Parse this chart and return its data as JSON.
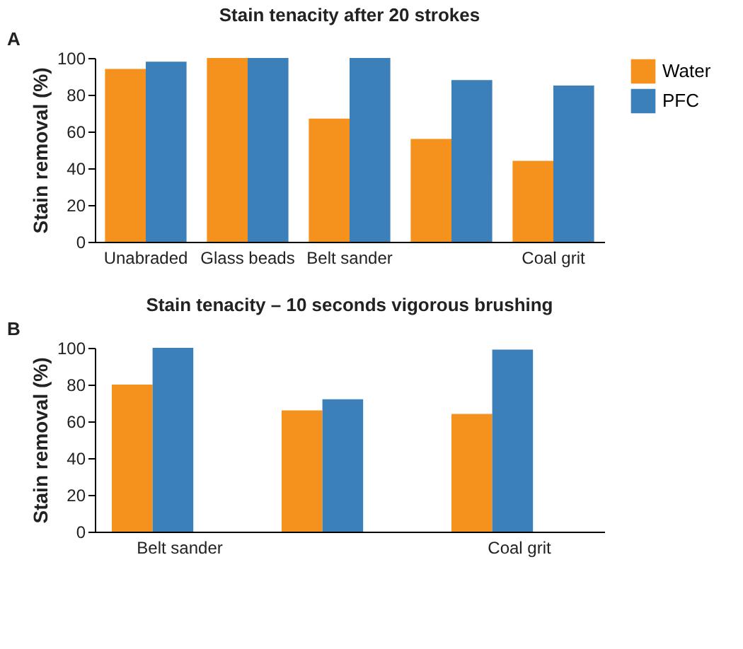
{
  "chart_data": [
    {
      "type": "bar",
      "title": "Stain tenacity after 20 strokes",
      "ylabel": "Stain removal (%)",
      "annotations": [
        "A"
      ],
      "categories": [
        "Unabraded",
        "Glass beads",
        "Belt sander",
        null,
        "Coal grit"
      ],
      "series": [
        {
          "name": "Water",
          "color": "#f5921e",
          "values": [
            94,
            100,
            67,
            56,
            44
          ]
        },
        {
          "name": "PFC",
          "color": "#3b80b9",
          "values": [
            98,
            100,
            100,
            88,
            85
          ]
        }
      ],
      "ylim": [
        0,
        100
      ],
      "yticks": [
        0,
        20,
        40,
        60,
        80,
        100
      ],
      "grid": false,
      "legend": "top right"
    },
    {
      "type": "bar",
      "title": "Stain tenacity – 10 seconds vigorous brushing",
      "ylabel": "Stain removal (%)",
      "annotations": [
        "B"
      ],
      "categories": [
        "Belt sander",
        null,
        "Coal grit"
      ],
      "series": [
        {
          "color": "#f5921e",
          "values": [
            80,
            66,
            64
          ]
        },
        {
          "color": "#3b80b9",
          "values": [
            100,
            72,
            99
          ]
        }
      ],
      "ylim": [
        0,
        100
      ],
      "yticks": [
        0,
        20,
        40,
        60,
        80,
        100
      ],
      "grid": false,
      "legend": false
    }
  ]
}
